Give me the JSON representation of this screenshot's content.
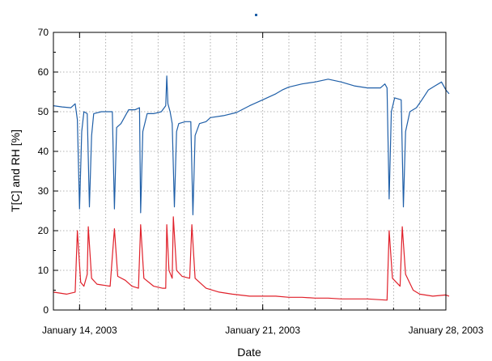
{
  "chart_data": {
    "type": "line",
    "xlabel": "Date",
    "ylabel": "T[C] and RH [%]",
    "ylim": [
      0,
      70
    ],
    "yticks": [
      0,
      10,
      20,
      30,
      40,
      50,
      60,
      70
    ],
    "xlim": [
      "2003-01-13",
      "2003-01-28"
    ],
    "xticks": [
      {
        "date": "2003-01-14",
        "label": "January 14, 2003"
      },
      {
        "date": "2003-01-21",
        "label": "January 21, 2003"
      },
      {
        "date": "2003-01-28",
        "label": "January 28, 2003"
      }
    ],
    "grid": true,
    "legend_markers": [
      {
        "color": "#1f5fa8"
      }
    ],
    "series": [
      {
        "color": "#1f5fa8",
        "points": [
          [
            "2003-01-13T00:00",
            51.5
          ],
          [
            "2003-01-13T08:00",
            51.2
          ],
          [
            "2003-01-13T16:00",
            51.0
          ],
          [
            "2003-01-13T20:00",
            52.0
          ],
          [
            "2003-01-13T22:00",
            48.0
          ],
          [
            "2003-01-14T00:00",
            25.5
          ],
          [
            "2003-01-14T02:00",
            45.0
          ],
          [
            "2003-01-14T04:00",
            50.0
          ],
          [
            "2003-01-14T07:00",
            49.5
          ],
          [
            "2003-01-14T09:00",
            26.0
          ],
          [
            "2003-01-14T11:00",
            44.0
          ],
          [
            "2003-01-14T13:00",
            49.5
          ],
          [
            "2003-01-14T20:00",
            50.0
          ],
          [
            "2003-01-15T02:00",
            50.0
          ],
          [
            "2003-01-15T06:00",
            50.0
          ],
          [
            "2003-01-15T08:00",
            25.5
          ],
          [
            "2003-01-15T10:00",
            46.0
          ],
          [
            "2003-01-15T14:00",
            47.0
          ],
          [
            "2003-01-15T17:00",
            48.5
          ],
          [
            "2003-01-15T21:00",
            50.5
          ],
          [
            "2003-01-16T03:00",
            50.5
          ],
          [
            "2003-01-16T07:00",
            51.0
          ],
          [
            "2003-01-16T08:00",
            24.5
          ],
          [
            "2003-01-16T10:00",
            45.0
          ],
          [
            "2003-01-16T14:00",
            49.5
          ],
          [
            "2003-01-16T20:00",
            49.5
          ],
          [
            "2003-01-17T03:00",
            50.0
          ],
          [
            "2003-01-17T07:00",
            51.5
          ],
          [
            "2003-01-17T08:00",
            59.0
          ],
          [
            "2003-01-17T09:00",
            52.0
          ],
          [
            "2003-01-17T11:00",
            50.0
          ],
          [
            "2003-01-17T13:00",
            47.0
          ],
          [
            "2003-01-17T15:00",
            26.0
          ],
          [
            "2003-01-17T17:00",
            45.0
          ],
          [
            "2003-01-17T19:00",
            47.0
          ],
          [
            "2003-01-18T01:00",
            47.5
          ],
          [
            "2003-01-18T06:00",
            47.5
          ],
          [
            "2003-01-18T08:00",
            24.0
          ],
          [
            "2003-01-18T10:00",
            44.0
          ],
          [
            "2003-01-18T14:00",
            47.0
          ],
          [
            "2003-01-18T20:00",
            47.5
          ],
          [
            "2003-01-19T00:00",
            48.5
          ],
          [
            "2003-01-19T12:00",
            49.0
          ],
          [
            "2003-01-20T00:00",
            49.8
          ],
          [
            "2003-01-20T12:00",
            51.5
          ],
          [
            "2003-01-21T00:00",
            53.0
          ],
          [
            "2003-01-21T12:00",
            54.5
          ],
          [
            "2003-01-21T18:00",
            55.5
          ],
          [
            "2003-01-22T00:00",
            56.2
          ],
          [
            "2003-01-22T12:00",
            57.0
          ],
          [
            "2003-01-23T00:00",
            57.5
          ],
          [
            "2003-01-23T12:00",
            58.2
          ],
          [
            "2003-01-24T00:00",
            57.5
          ],
          [
            "2003-01-24T12:00",
            56.5
          ],
          [
            "2003-01-25T00:00",
            56.0
          ],
          [
            "2003-01-25T12:00",
            56.0
          ],
          [
            "2003-01-25T16:00",
            57.0
          ],
          [
            "2003-01-25T18:00",
            56.0
          ],
          [
            "2003-01-25T20:00",
            28.0
          ],
          [
            "2003-01-25T22:00",
            50.0
          ],
          [
            "2003-01-26T01:00",
            53.5
          ],
          [
            "2003-01-26T07:00",
            53.0
          ],
          [
            "2003-01-26T09:00",
            26.0
          ],
          [
            "2003-01-26T11:00",
            45.0
          ],
          [
            "2003-01-26T15:00",
            50.0
          ],
          [
            "2003-01-26T21:00",
            51.0
          ],
          [
            "2003-01-27T02:00",
            53.0
          ],
          [
            "2003-01-27T08:00",
            55.5
          ],
          [
            "2003-01-27T14:00",
            56.5
          ],
          [
            "2003-01-27T20:00",
            57.5
          ],
          [
            "2003-01-28T00:00",
            55.5
          ],
          [
            "2003-01-28T03:00",
            54.5
          ]
        ]
      },
      {
        "color": "#e0202a",
        "points": [
          [
            "2003-01-13T00:00",
            4.5
          ],
          [
            "2003-01-13T12:00",
            4.0
          ],
          [
            "2003-01-13T20:00",
            4.5
          ],
          [
            "2003-01-13T22:00",
            20.0
          ],
          [
            "2003-01-14T01:00",
            7.0
          ],
          [
            "2003-01-14T04:00",
            6.0
          ],
          [
            "2003-01-14T07:00",
            9.0
          ],
          [
            "2003-01-14T08:00",
            21.0
          ],
          [
            "2003-01-14T11:00",
            8.0
          ],
          [
            "2003-01-14T16:00",
            6.5
          ],
          [
            "2003-01-15T04:00",
            6.0
          ],
          [
            "2003-01-15T08:00",
            20.5
          ],
          [
            "2003-01-15T11:00",
            8.5
          ],
          [
            "2003-01-15T18:00",
            7.5
          ],
          [
            "2003-01-16T00:00",
            6.0
          ],
          [
            "2003-01-16T06:00",
            5.5
          ],
          [
            "2003-01-16T08:00",
            21.5
          ],
          [
            "2003-01-16T11:00",
            8.0
          ],
          [
            "2003-01-16T20:00",
            6.0
          ],
          [
            "2003-01-17T04:00",
            5.5
          ],
          [
            "2003-01-17T07:00",
            5.5
          ],
          [
            "2003-01-17T08:00",
            21.5
          ],
          [
            "2003-01-17T10:00",
            10.0
          ],
          [
            "2003-01-17T13:00",
            8.0
          ],
          [
            "2003-01-17T14:00",
            23.5
          ],
          [
            "2003-01-17T17:00",
            10.0
          ],
          [
            "2003-01-17T22:00",
            8.5
          ],
          [
            "2003-01-18T05:00",
            8.0
          ],
          [
            "2003-01-18T07:00",
            21.5
          ],
          [
            "2003-01-18T10:00",
            8.0
          ],
          [
            "2003-01-18T20:00",
            5.5
          ],
          [
            "2003-01-19T08:00",
            4.5
          ],
          [
            "2003-01-19T20:00",
            4.0
          ],
          [
            "2003-01-20T12:00",
            3.5
          ],
          [
            "2003-01-21T00:00",
            3.5
          ],
          [
            "2003-01-21T12:00",
            3.5
          ],
          [
            "2003-01-22T00:00",
            3.2
          ],
          [
            "2003-01-22T12:00",
            3.2
          ],
          [
            "2003-01-23T00:00",
            3.0
          ],
          [
            "2003-01-23T12:00",
            3.0
          ],
          [
            "2003-01-24T00:00",
            2.8
          ],
          [
            "2003-01-24T12:00",
            2.8
          ],
          [
            "2003-01-25T00:00",
            2.8
          ],
          [
            "2003-01-25T18:00",
            2.5
          ],
          [
            "2003-01-25T20:00",
            20.0
          ],
          [
            "2003-01-25T23:00",
            8.0
          ],
          [
            "2003-01-26T06:00",
            6.0
          ],
          [
            "2003-01-26T08:00",
            21.0
          ],
          [
            "2003-01-26T11:00",
            9.0
          ],
          [
            "2003-01-26T18:00",
            5.0
          ],
          [
            "2003-01-27T00:00",
            4.0
          ],
          [
            "2003-01-27T12:00",
            3.5
          ],
          [
            "2003-01-28T00:00",
            3.8
          ],
          [
            "2003-01-28T03:00",
            3.5
          ]
        ]
      }
    ]
  }
}
